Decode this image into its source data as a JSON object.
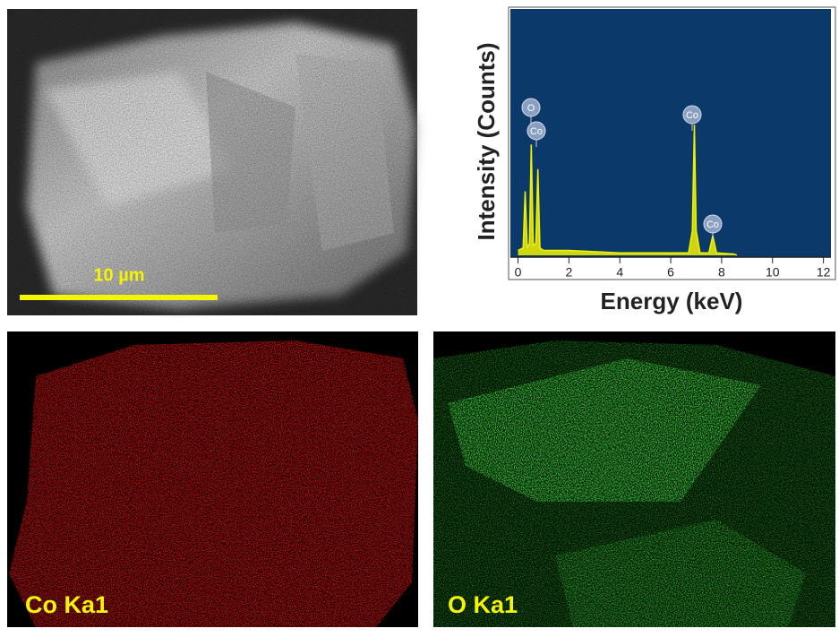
{
  "sem": {
    "scale_bar": "10 µm"
  },
  "chart_data": {
    "type": "area",
    "x_label": "Energy (keV)",
    "y_label": "Intensity (Counts)",
    "x": [
      0,
      0.2,
      0.28,
      0.36,
      0.45,
      0.52,
      0.6,
      0.7,
      0.78,
      0.86,
      1.0,
      1.5,
      2,
      3,
      4,
      5,
      6,
      6.7,
      6.85,
      6.93,
      7.0,
      7.15,
      7.5,
      7.65,
      7.8,
      8.5,
      8.6
    ],
    "values": [
      2,
      3,
      26,
      3,
      5,
      45,
      4,
      5,
      35,
      3,
      2,
      2,
      2,
      1.5,
      1,
      1,
      1,
      1,
      10,
      53,
      10,
      1,
      1,
      8,
      1,
      0.5,
      0
    ],
    "color": "#f2f200",
    "xlim": [
      -0.3,
      12.4
    ],
    "ylim": [
      0,
      100
    ],
    "xticks": [
      0,
      2,
      4,
      6,
      8,
      10,
      12
    ],
    "annotations": [
      {
        "text": "O"
      },
      {
        "text": "Co"
      },
      {
        "text": "Co"
      },
      {
        "text": "Co"
      }
    ]
  },
  "maps": [
    {
      "label": "Co Ka1"
    },
    {
      "label": "O Ka1"
    }
  ]
}
